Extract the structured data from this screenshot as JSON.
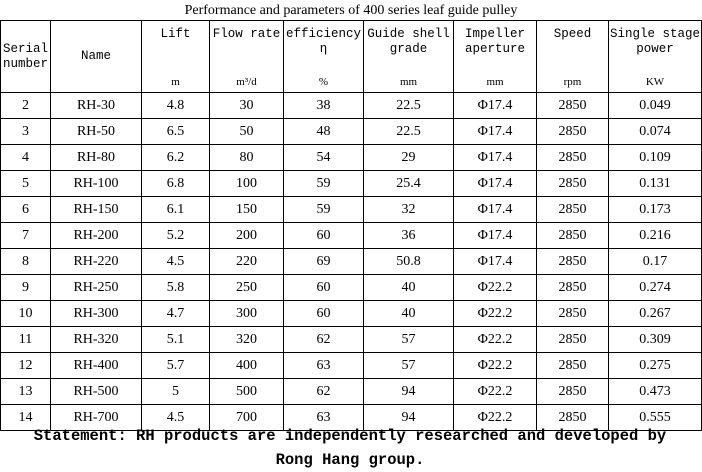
{
  "title": "Performance and parameters of 400 series leaf guide pulley",
  "table": {
    "headers": [
      "Serial number",
      "Name",
      "Lift",
      "Flow rate",
      "efficiency η",
      "Guide shell grade",
      "Impeller aperture",
      "Speed",
      "Single stage power"
    ],
    "units": [
      "m",
      "m³/d",
      "%",
      "mm",
      "mm",
      "rpm",
      "KW"
    ],
    "rows": [
      [
        "2",
        "RH-30",
        "4.8",
        "30",
        "38",
        "22.5",
        "Φ17.4",
        "2850",
        "0.049"
      ],
      [
        "3",
        "RH-50",
        "6.5",
        "50",
        "48",
        "22.5",
        "Φ17.4",
        "2850",
        "0.074"
      ],
      [
        "4",
        "RH-80",
        "6.2",
        "80",
        "54",
        "29",
        "Φ17.4",
        "2850",
        "0.109"
      ],
      [
        "5",
        "RH-100",
        "6.8",
        "100",
        "59",
        "25.4",
        "Φ17.4",
        "2850",
        "0.131"
      ],
      [
        "6",
        "RH-150",
        "6.1",
        "150",
        "59",
        "32",
        "Φ17.4",
        "2850",
        "0.173"
      ],
      [
        "7",
        "RH-200",
        "5.2",
        "200",
        "60",
        "36",
        "Φ17.4",
        "2850",
        "0.216"
      ],
      [
        "8",
        "RH-220",
        "4.5",
        "220",
        "69",
        "50.8",
        "Φ17.4",
        "2850",
        "0.17"
      ],
      [
        "9",
        "RH-250",
        "5.8",
        "250",
        "60",
        "40",
        "Φ22.2",
        "2850",
        "0.274"
      ],
      [
        "10",
        "RH-300",
        "4.7",
        "300",
        "60",
        "40",
        "Φ22.2",
        "2850",
        "0.267"
      ],
      [
        "11",
        "RH-320",
        "5.1",
        "320",
        "62",
        "57",
        "Φ22.2",
        "2850",
        "0.309"
      ],
      [
        "12",
        "RH-400",
        "5.7",
        "400",
        "63",
        "57",
        "Φ22.2",
        "2850",
        "0.275"
      ],
      [
        "13",
        "RH-500",
        "5",
        "500",
        "62",
        "94",
        "Φ22.2",
        "2850",
        "0.473"
      ],
      [
        "14",
        "RH-700",
        "4.5",
        "700",
        "63",
        "94",
        "Φ22.2",
        "2850",
        "0.555"
      ]
    ]
  },
  "statement": "Statement: RH products are independently researched and developed by Rong Hang group."
}
